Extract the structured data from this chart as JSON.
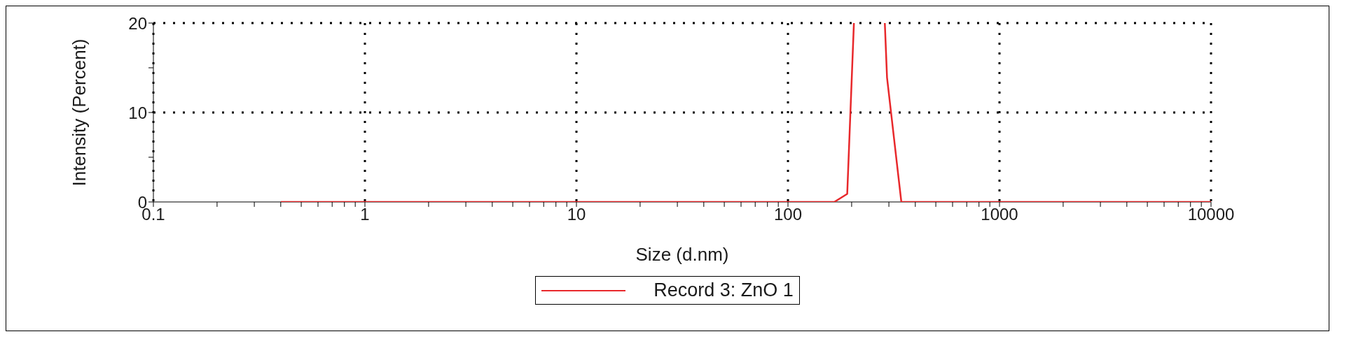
{
  "chart_data": {
    "type": "line",
    "xlabel": "Size (d.nm)",
    "ylabel": "Intensity (Percent)",
    "log": "x",
    "x": [
      0.4,
      1,
      10,
      100,
      165.6,
      190.6,
      205,
      243,
      287,
      294,
      343.5,
      1000,
      10000
    ],
    "series": [
      {
        "name": "Record 3: ZnO 1",
        "color": "#e8282b",
        "values": [
          0,
          0,
          0,
          0,
          0,
          0.9,
          20,
          null,
          20,
          13.9,
          0,
          0,
          0
        ]
      }
    ],
    "xlim": [
      0.1,
      10000
    ],
    "xticks": [
      0.1,
      {
        "value": 0.2,
        "label": null
      },
      {
        "value": 0.3,
        "label": null
      },
      {
        "value": 0.4,
        "label": null
      },
      {
        "value": 0.5,
        "label": null
      },
      {
        "value": 0.6,
        "label": null
      },
      {
        "value": 0.7,
        "label": null
      },
      {
        "value": 0.8,
        "label": null
      },
      {
        "value": 0.9,
        "label": null
      },
      1,
      {
        "value": 2,
        "label": null
      },
      {
        "value": 3,
        "label": null
      },
      {
        "value": 4,
        "label": null
      },
      {
        "value": 5,
        "label": null
      },
      {
        "value": 6,
        "label": null
      },
      {
        "value": 7,
        "label": null
      },
      {
        "value": 8,
        "label": null
      },
      {
        "value": 9,
        "label": null
      },
      10,
      {
        "value": 20,
        "label": null
      },
      {
        "value": 30,
        "label": null
      },
      {
        "value": 40,
        "label": null
      },
      {
        "value": 50,
        "label": null
      },
      {
        "value": 60,
        "label": null
      },
      {
        "value": 70,
        "label": null
      },
      {
        "value": 80,
        "label": null
      },
      {
        "value": 90,
        "label": null
      },
      100,
      {
        "value": 200,
        "label": null
      },
      {
        "value": 300,
        "label": null
      },
      {
        "value": 400,
        "label": null
      },
      {
        "value": 500,
        "label": null
      },
      {
        "value": 600,
        "label": null
      },
      {
        "value": 700,
        "label": null
      },
      {
        "value": 800,
        "label": null
      },
      {
        "value": 900,
        "label": null
      },
      1000,
      {
        "value": 2000,
        "label": null
      },
      {
        "value": 3000,
        "label": null
      },
      {
        "value": 4000,
        "label": null
      },
      {
        "value": 5000,
        "label": null
      },
      {
        "value": 6000,
        "label": null
      },
      {
        "value": 7000,
        "label": null
      },
      {
        "value": 8000,
        "label": null
      },
      {
        "value": 9000,
        "label": null
      },
      10000
    ],
    "ylim": [
      0,
      20
    ],
    "yticks": [
      0,
      {
        "value": 5,
        "label": null
      },
      10,
      {
        "value": 15,
        "label": null
      },
      20
    ],
    "grid": true,
    "legend": "bottom",
    "marker": "none",
    "line_style": "solid"
  }
}
